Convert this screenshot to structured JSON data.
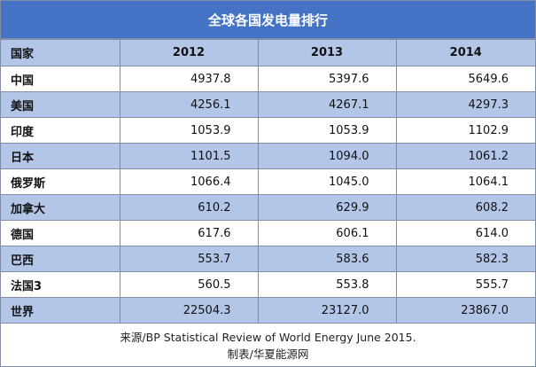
{
  "chart_data": {
    "type": "table",
    "title": "全球各国发电量排行",
    "columns": [
      "国家",
      "2012",
      "2013",
      "2014"
    ],
    "rows": [
      {
        "country": "中国",
        "values": [
          "4937.8",
          "5397.6",
          "5649.6"
        ]
      },
      {
        "country": "美国",
        "values": [
          "4256.1",
          "4267.1",
          "4297.3"
        ]
      },
      {
        "country": "印度",
        "values": [
          "1053.9",
          "1053.9",
          "1102.9"
        ]
      },
      {
        "country": "日本",
        "values": [
          "1101.5",
          "1094.0",
          "1061.2"
        ]
      },
      {
        "country": "俄罗斯",
        "values": [
          "1066.4",
          "1045.0",
          "1064.1"
        ]
      },
      {
        "country": "加拿大",
        "values": [
          "610.2",
          "629.9",
          "608.2"
        ]
      },
      {
        "country": "德国",
        "values": [
          "617.6",
          "606.1",
          "614.0"
        ]
      },
      {
        "country": "巴西",
        "values": [
          "553.7",
          "583.6",
          "582.3"
        ]
      },
      {
        "country": "法国3",
        "values": [
          "560.5",
          "553.8",
          "555.7"
        ]
      },
      {
        "country": "世界",
        "values": [
          "22504.3",
          "23127.0",
          "23867.0"
        ]
      }
    ],
    "notes": [
      "来源/BP Statistical Review of World Energy June 2015.",
      "制表/华夏能源网"
    ]
  },
  "colors": {
    "title_bar": "#4472c4",
    "band": "#b4c6e7",
    "border": "#7f8ea6"
  }
}
